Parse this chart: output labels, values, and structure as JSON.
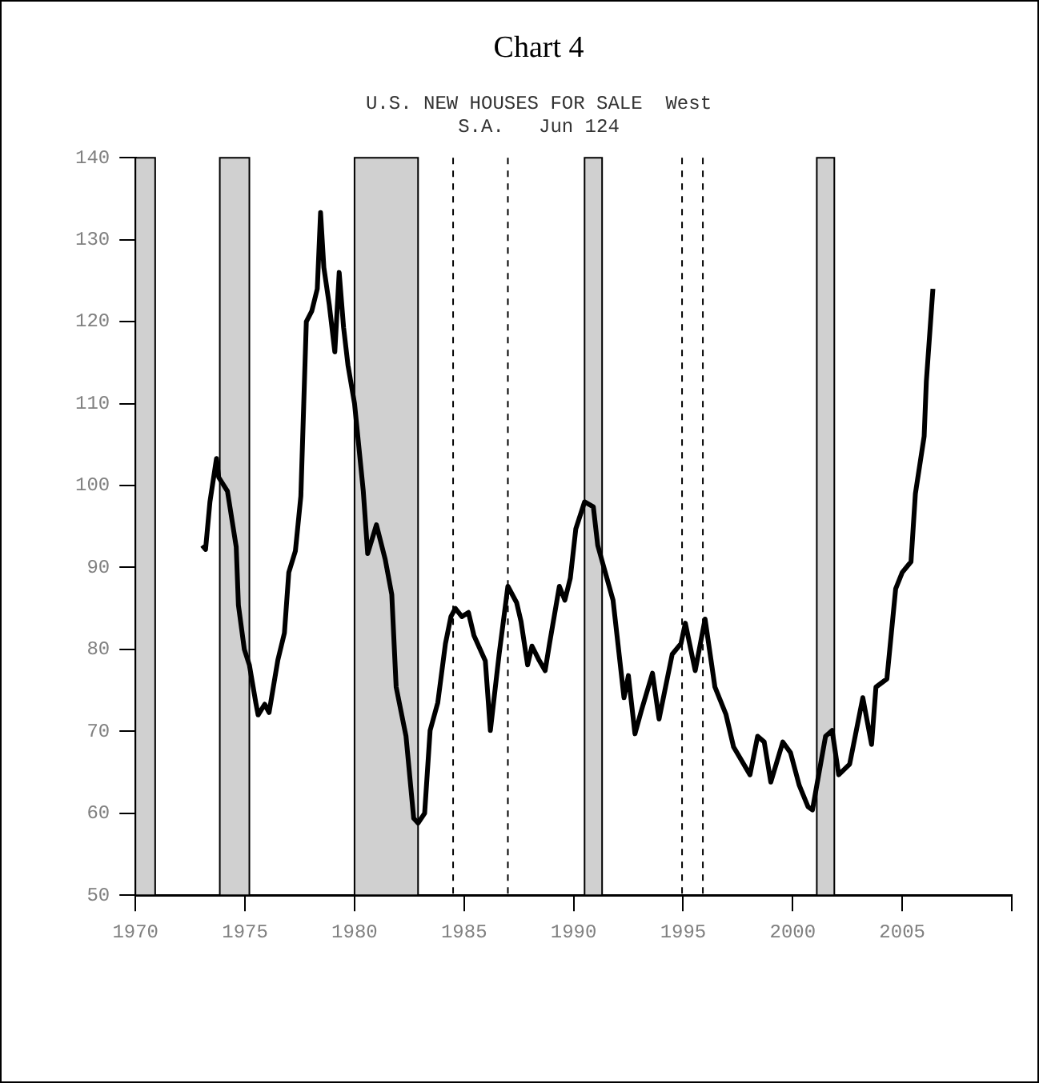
{
  "chart_data": {
    "type": "line",
    "title": "Chart 4",
    "subtitle": "U.S. NEW HOUSES FOR SALE  West",
    "annotations": [
      "S.A.   Jun 124"
    ],
    "x": [
      1973.05,
      1973.2,
      1973.4,
      1973.7,
      1973.8,
      1974.2,
      1974.6,
      1974.7,
      1974.97,
      1975.2,
      1975.5,
      1975.6,
      1975.9,
      1976.1,
      1976.5,
      1976.8,
      1977.0,
      1977.3,
      1977.55,
      1977.8,
      1978.05,
      1978.3,
      1978.45,
      1978.6,
      1978.85,
      1979.1,
      1979.3,
      1979.5,
      1979.7,
      1980.0,
      1980.4,
      1980.6,
      1981.0,
      1981.4,
      1981.7,
      1981.9,
      1982.35,
      1982.7,
      1982.9,
      1983.2,
      1983.45,
      1983.8,
      1984.15,
      1984.4,
      1984.6,
      1984.9,
      1985.2,
      1985.45,
      1985.97,
      1986.2,
      1986.6,
      1987.0,
      1987.4,
      1987.6,
      1987.9,
      1988.1,
      1988.4,
      1988.7,
      1988.9,
      1989.35,
      1989.6,
      1989.85,
      1990.1,
      1990.5,
      1990.9,
      1991.1,
      1991.8,
      1992.3,
      1992.5,
      1992.8,
      1993.1,
      1993.6,
      1993.9,
      1994.5,
      1994.9,
      1995.1,
      1995.55,
      1996.0,
      1996.45,
      1996.95,
      1997.3,
      1998.05,
      1998.4,
      1998.7,
      1999.0,
      1999.55,
      1999.9,
      2000.3,
      2000.7,
      2000.9,
      2001.5,
      2001.8,
      2002.1,
      2002.6,
      2003.2,
      2003.6,
      2003.8,
      2004.3,
      2004.7,
      2005.0,
      2005.4,
      2005.6,
      2006.0,
      2006.1,
      2006.4
    ],
    "series": [
      {
        "color": "#000000",
        "values": [
          92.7,
          92.2,
          98,
          103.3,
          101,
          99.3,
          92.5,
          85.4,
          80,
          78.1,
          73.4,
          72,
          73.3,
          72.3,
          78.7,
          82,
          89.4,
          92,
          98.7,
          120,
          121.3,
          124,
          133.3,
          126.6,
          122,
          116.3,
          126,
          119.3,
          114.7,
          110,
          99.3,
          91.7,
          95.2,
          91,
          86.7,
          75.4,
          69.4,
          59.4,
          58.8,
          60,
          70.1,
          73.5,
          80.7,
          84,
          85,
          84,
          84.5,
          81.7,
          78.6,
          70.1,
          79.4,
          87.7,
          85.7,
          83.4,
          78.1,
          80.4,
          78.8,
          77.4,
          80.7,
          87.7,
          86,
          88.7,
          94.7,
          98,
          97.4,
          92.7,
          86,
          74.1,
          76.8,
          69.7,
          72.6,
          77.1,
          71.5,
          79.4,
          80.7,
          83.2,
          77.4,
          83.7,
          75.4,
          72.1,
          68.1,
          64.7,
          69.4,
          68.7,
          63.8,
          68.7,
          67.4,
          63.4,
          60.8,
          60.4,
          69.4,
          70.1,
          64.7,
          66,
          74.1,
          68.4,
          75.4,
          76.4,
          87.4,
          89.4,
          90.7,
          99,
          106,
          112.7,
          124
        ]
      }
    ],
    "xlim": [
      1970,
      2010
    ],
    "xticks": [
      1970,
      1975,
      1980,
      1985,
      1990,
      1995,
      2000,
      2005,
      {
        "value": 2010,
        "label": null
      }
    ],
    "ylim": [
      50,
      140
    ],
    "yticks": [
      50,
      60,
      70,
      80,
      90,
      100,
      110,
      120,
      130,
      140
    ],
    "bands": [
      {
        "axis": "x",
        "from": 1970,
        "to": 1970.9,
        "color": "#d0d0d0"
      },
      {
        "axis": "x",
        "from": 1973.85,
        "to": 1975.2,
        "color": "#d0d0d0"
      },
      {
        "axis": "x",
        "from": 1980,
        "to": 1982.9,
        "color": "#d0d0d0"
      },
      {
        "axis": "x",
        "from": 1990.5,
        "to": 1991.3,
        "color": "#d0d0d0"
      },
      {
        "axis": "x",
        "from": 2001.1,
        "to": 2001.9,
        "color": "#d0d0d0"
      }
    ],
    "ref_lines": [
      {
        "axis": "x",
        "value": 1984.5,
        "color": "#000000",
        "line_style": "dashed"
      },
      {
        "axis": "x",
        "value": 1987.0,
        "color": "#000000",
        "line_style": "dashed"
      },
      {
        "axis": "x",
        "value": 1994.95,
        "color": "#000000",
        "line_style": "dashed"
      },
      {
        "axis": "x",
        "value": 1995.9,
        "color": "#000000",
        "line_style": "dashed"
      }
    ],
    "marker": "none",
    "line_style": "solid",
    "legend": false,
    "grid": false
  }
}
